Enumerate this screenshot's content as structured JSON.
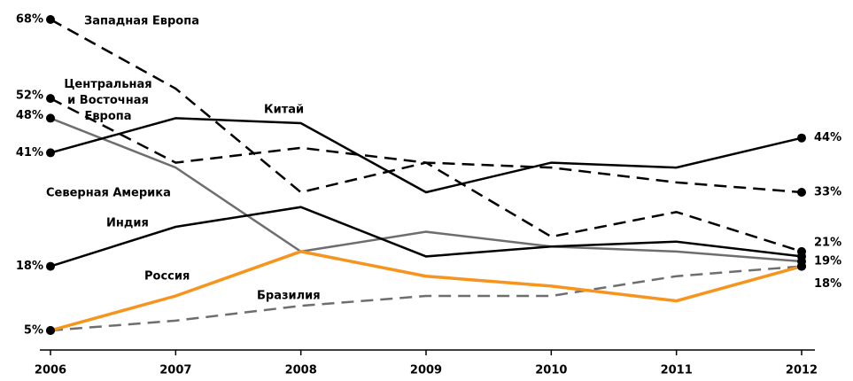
{
  "chart_data": {
    "type": "line",
    "categories": [
      "2006",
      "2007",
      "2008",
      "2009",
      "2010",
      "2011",
      "2012"
    ],
    "ylim": [
      5,
      68
    ],
    "series": [
      {
        "name": "Западная Европа",
        "color": "#000000",
        "dash": true,
        "values": [
          68,
          54,
          33,
          39,
          24,
          29,
          21
        ],
        "value_labels": [
          "68%",
          null,
          null,
          null,
          null,
          null,
          "21%"
        ]
      },
      {
        "name": "Центральная\nи Восточная\nЕвропа",
        "color": "#000000",
        "dash": true,
        "values": [
          52,
          39,
          42,
          39,
          38,
          35,
          33
        ],
        "value_labels": [
          "52%",
          null,
          null,
          null,
          null,
          null,
          "33%"
        ]
      },
      {
        "name": "Китай",
        "color": "#000000",
        "dash": false,
        "values": [
          41,
          48,
          47,
          33,
          39,
          38,
          44
        ],
        "value_labels": [
          "41%",
          null,
          null,
          null,
          null,
          null,
          "44%"
        ]
      },
      {
        "name": "Северная Америка",
        "color": "#6e6e6e",
        "dash": false,
        "values": [
          48,
          38,
          21,
          25,
          22,
          21,
          19
        ],
        "value_labels": [
          "48%",
          null,
          null,
          null,
          null,
          null,
          "19%"
        ]
      },
      {
        "name": "Индия",
        "color": "#000000",
        "dash": false,
        "values": [
          18,
          26,
          30,
          20,
          22,
          23,
          20
        ],
        "value_labels": [
          "18%",
          null,
          null,
          null,
          null,
          null,
          null
        ]
      },
      {
        "name": "Россия",
        "color": "#f7941d",
        "dash": false,
        "values": [
          5,
          12,
          21,
          16,
          14,
          11,
          18
        ],
        "value_labels": [
          "5%",
          null,
          null,
          null,
          null,
          null,
          "18%"
        ]
      },
      {
        "name": "Бразилия",
        "color": "#6e6e6e",
        "dash": true,
        "values": [
          5,
          7,
          10,
          12,
          12,
          16,
          18
        ]
      }
    ]
  }
}
